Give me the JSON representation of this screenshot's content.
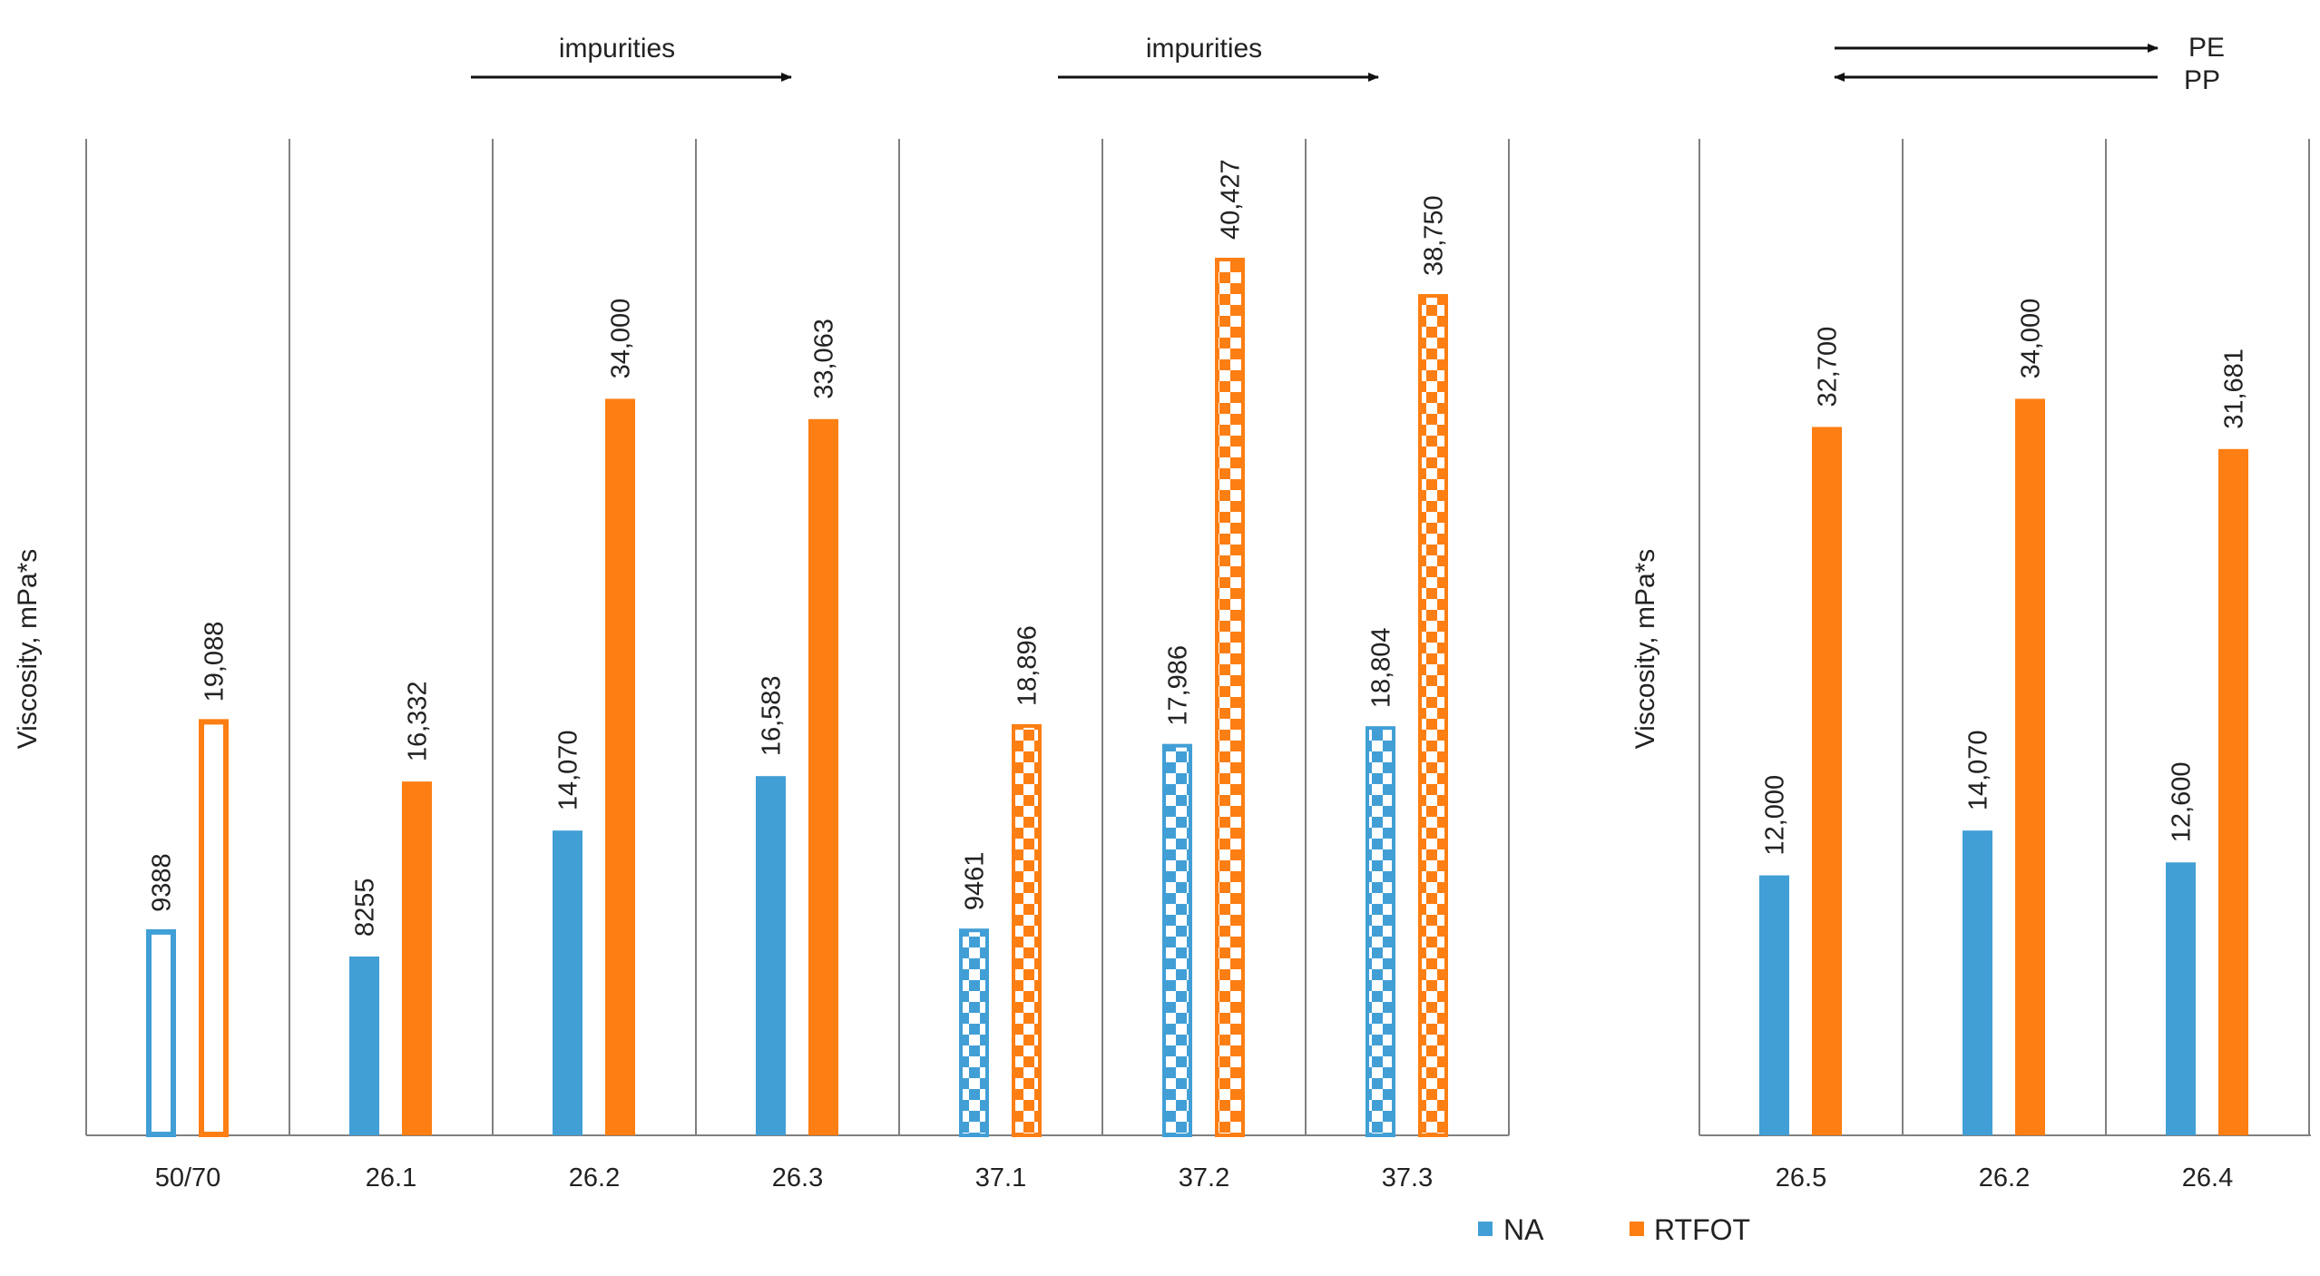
{
  "colors": {
    "na": "#419fd6",
    "rtfot": "#fd7e12",
    "axis": "#808080",
    "text": "#222222"
  },
  "legend": [
    {
      "label": "NA",
      "color": "#419fd6"
    },
    {
      "label": "RTFOT",
      "color": "#fd7e12"
    }
  ],
  "arrows": {
    "impurities_1": "impurities",
    "impurities_2": "impurities",
    "pe": "PE",
    "pp": "PP"
  },
  "chart_data": [
    {
      "type": "bar",
      "ylabel": "Viscosity, mPa*s",
      "ylim": [
        0,
        46000
      ],
      "categories": [
        "50/70",
        "26.1",
        "26.2",
        "26.3",
        "37.1",
        "37.2",
        "37.3"
      ],
      "series": [
        {
          "name": "NA",
          "values": [
            9388,
            8255,
            14070,
            16583,
            9461,
            17986,
            18804
          ],
          "labels": [
            "9388",
            "8255",
            "14,070",
            "16,583",
            "9461",
            "17,986",
            "18,804"
          ],
          "styles": [
            "outline",
            "solid",
            "solid",
            "solid",
            "checker",
            "checker",
            "checker"
          ]
        },
        {
          "name": "RTFOT",
          "values": [
            19088,
            16332,
            34000,
            33063,
            18896,
            40427,
            38750
          ],
          "labels": [
            "19,088",
            "16,332",
            "34,000",
            "33,063",
            "18,896",
            "40,427",
            "38,750"
          ],
          "styles": [
            "outline",
            "solid",
            "solid",
            "solid",
            "checker",
            "checker",
            "checker"
          ]
        }
      ]
    },
    {
      "type": "bar",
      "ylabel": "Viscosity, mPa*s",
      "ylim": [
        0,
        46000
      ],
      "categories": [
        "26.5",
        "26.2",
        "26.4"
      ],
      "series": [
        {
          "name": "NA",
          "values": [
            12000,
            14070,
            12600
          ],
          "labels": [
            "12,000",
            "14,070",
            "12,600"
          ],
          "styles": [
            "solid",
            "solid",
            "solid"
          ]
        },
        {
          "name": "RTFOT",
          "values": [
            32700,
            34000,
            31681
          ],
          "labels": [
            "32,700",
            "34,000",
            "31,681"
          ],
          "styles": [
            "solid",
            "solid",
            "solid"
          ]
        }
      ]
    }
  ]
}
